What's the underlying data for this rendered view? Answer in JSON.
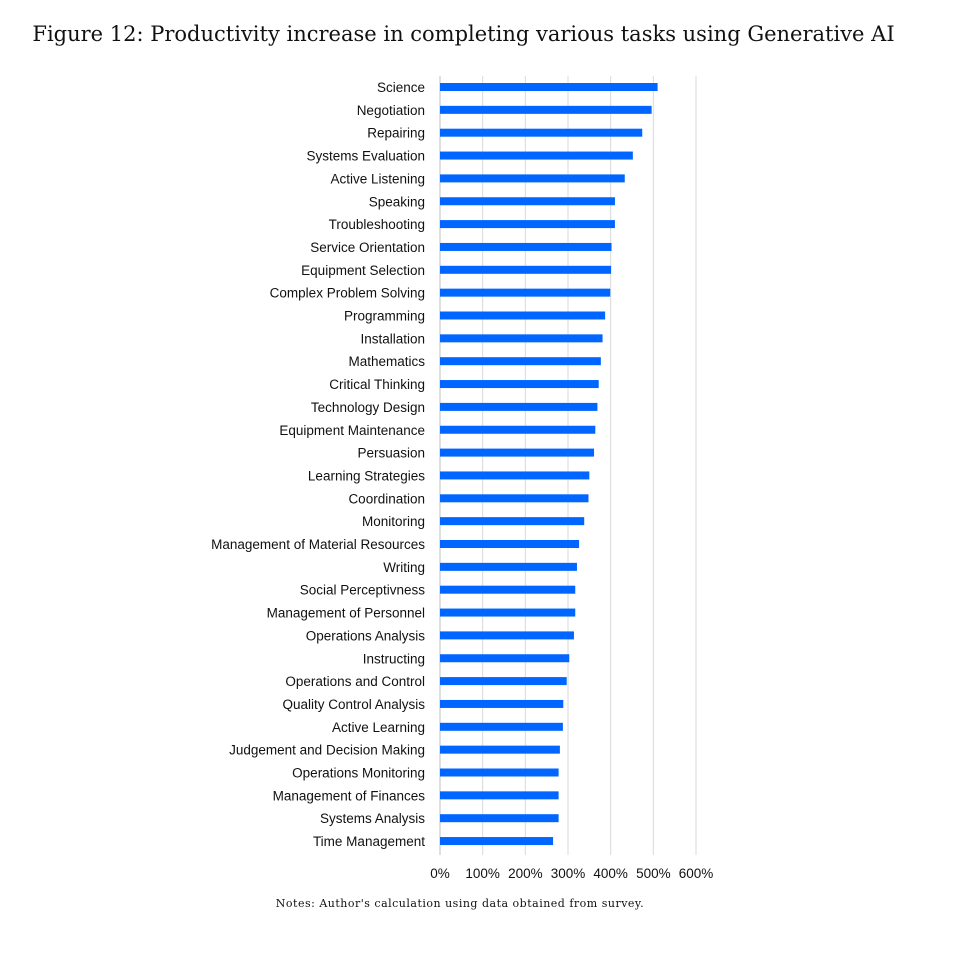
{
  "figure": {
    "title": "Figure 12: Productivity increase in completing various tasks using Generative AI",
    "notes": "Notes: Author's calculation using data obtained from survey."
  },
  "chart_data": {
    "type": "bar",
    "orientation": "horizontal",
    "categories": [
      "Science",
      "Negotiation",
      "Repairing",
      "Systems Evaluation",
      "Active Listening",
      "Speaking",
      "Troubleshooting",
      "Service Orientation",
      "Equipment Selection",
      "Complex Problem Solving",
      "Programming",
      "Installation",
      "Mathematics",
      "Critical Thinking",
      "Technology Design",
      "Equipment Maintenance",
      "Persuasion",
      "Learning Strategies",
      "Coordination",
      "Monitoring",
      "Management of Material Resources",
      "Writing",
      "Social Perceptivness",
      "Management of Personnel",
      "Operations Analysis",
      "Instructing",
      "Operations and Control",
      "Quality Control Analysis",
      "Active Learning",
      "Judgement and Decision Making",
      "Operations Monitoring",
      "Management of Finances",
      "Systems Analysis",
      "Time Management"
    ],
    "values": [
      510,
      496,
      474,
      452,
      433,
      410,
      410,
      402,
      401,
      399,
      387,
      381,
      377,
      372,
      369,
      364,
      361,
      350,
      348,
      338,
      326,
      321,
      317,
      317,
      314,
      303,
      297,
      289,
      288,
      281,
      278,
      278,
      278,
      265
    ],
    "unit": "%",
    "xlim": [
      0,
      600
    ],
    "xticks": [
      0,
      100,
      200,
      300,
      400,
      500,
      600
    ],
    "xtick_labels": [
      "0%",
      "100%",
      "200%",
      "300%",
      "400%",
      "500%",
      "600%"
    ],
    "grid": "vertical",
    "legend": "none",
    "bar_color": "#0066ff",
    "grid_color": "#d9d9d9",
    "xlabel": "",
    "ylabel": ""
  }
}
